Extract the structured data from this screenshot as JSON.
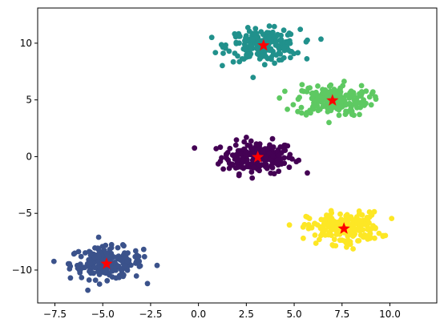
{
  "chart_data": {
    "type": "scatter",
    "title": "",
    "xlabel": "",
    "ylabel": "",
    "xlim": [
      -8.4,
      12.45
    ],
    "ylim": [
      -12.9,
      13.1
    ],
    "x_ticks": [
      -7.5,
      -5.0,
      -2.5,
      0.0,
      2.5,
      5.0,
      7.5,
      10.0
    ],
    "x_tick_labels": [
      "−7.5",
      "−5.0",
      "−2.5",
      "0.0",
      "2.5",
      "5.0",
      "7.5",
      "10.0"
    ],
    "y_ticks": [
      -10,
      -5,
      0,
      5,
      10
    ],
    "y_tick_labels": [
      "−10",
      "−5",
      "0",
      "5",
      "10"
    ],
    "grid": false,
    "legend": "none",
    "clusters": [
      {
        "color": "#440154",
        "center": [
          3.1,
          -0.05
        ],
        "spread": [
          0.95,
          0.7
        ],
        "count": 200
      },
      {
        "color": "#3b528b",
        "center": [
          -4.8,
          -9.4
        ],
        "spread": [
          0.95,
          0.7
        ],
        "count": 200
      },
      {
        "color": "#21918c",
        "center": [
          3.4,
          9.8
        ],
        "spread": [
          0.95,
          0.7
        ],
        "count": 200
      },
      {
        "color": "#5ec962",
        "center": [
          7.0,
          5.0
        ],
        "spread": [
          0.95,
          0.7
        ],
        "count": 200
      },
      {
        "color": "#fde725",
        "center": [
          7.6,
          -6.3
        ],
        "spread": [
          0.95,
          0.7
        ],
        "count": 200
      }
    ],
    "centroids": {
      "color": "#ff0000",
      "marker": "star",
      "points": [
        [
          3.1,
          -0.05
        ],
        [
          -4.8,
          -9.45
        ],
        [
          3.4,
          9.8
        ],
        [
          7.0,
          4.95
        ],
        [
          7.6,
          -6.35
        ]
      ]
    }
  }
}
